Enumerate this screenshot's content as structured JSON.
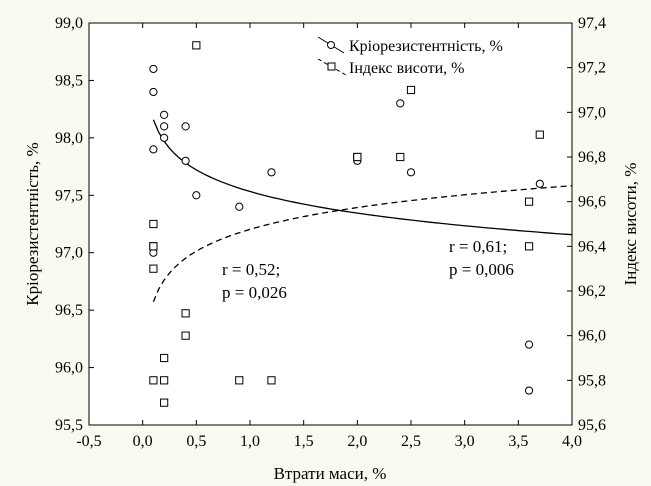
{
  "chart_data": {
    "type": "scatter",
    "xlabel": "Втрати маси, %",
    "ylabel_left": "Кріорезистентність, %",
    "ylabel_right": "Індекс висоти, %",
    "xlim": [
      -0.5,
      4.0
    ],
    "ylim_left": [
      95.5,
      99.0
    ],
    "ylim_right": [
      95.6,
      97.4
    ],
    "x_ticks": [
      -0.5,
      0.0,
      0.5,
      1.0,
      1.5,
      2.0,
      2.5,
      3.0,
      3.5,
      4.0
    ],
    "x_tick_labels": [
      "-0,5",
      "0,0",
      "0,5",
      "1,0",
      "1,5",
      "2,0",
      "2,5",
      "3,0",
      "3,5",
      "4,0"
    ],
    "y_left_ticks": [
      95.5,
      96.0,
      96.5,
      97.0,
      97.5,
      98.0,
      98.5,
      99.0
    ],
    "y_left_tick_labels": [
      "95,5",
      "96,0",
      "96,5",
      "97,0",
      "97,5",
      "98,0",
      "98,5",
      "99,0"
    ],
    "y_right_ticks": [
      95.6,
      95.8,
      96.0,
      96.2,
      96.4,
      96.6,
      96.8,
      97.0,
      97.2,
      97.4
    ],
    "y_right_tick_labels": [
      "95,6",
      "95,8",
      "96,0",
      "96,2",
      "96,4",
      "96,6",
      "96,8",
      "97,0",
      "97,2",
      "97,4"
    ],
    "grid": false,
    "legend_position": "top-right",
    "series": [
      {
        "name": "Кріорезистентність, %",
        "axis": "left",
        "marker": "circle",
        "points": [
          [
            0.1,
            98.6
          ],
          [
            0.1,
            98.4
          ],
          [
            0.1,
            97.9
          ],
          [
            0.1,
            97.0
          ],
          [
            0.2,
            98.2
          ],
          [
            0.2,
            98.1
          ],
          [
            0.2,
            98.0
          ],
          [
            0.4,
            98.1
          ],
          [
            0.4,
            97.8
          ],
          [
            0.5,
            97.5
          ],
          [
            0.9,
            97.4
          ],
          [
            1.2,
            97.7
          ],
          [
            2.0,
            97.8
          ],
          [
            2.4,
            98.3
          ],
          [
            2.5,
            97.7
          ],
          [
            3.6,
            96.2
          ],
          [
            3.6,
            95.8
          ],
          [
            3.7,
            97.6
          ]
        ],
        "fit": {
          "kind": "log",
          "line": "solid",
          "x_range": [
            0.1,
            4.0
          ],
          "a": 97.533,
          "b": -0.2715
        }
      },
      {
        "name": "Індекс висоти, %",
        "axis": "right",
        "marker": "square",
        "points": [
          [
            0.1,
            96.5
          ],
          [
            0.1,
            96.4
          ],
          [
            0.1,
            96.4
          ],
          [
            0.1,
            96.3
          ],
          [
            0.1,
            95.8
          ],
          [
            0.2,
            95.9
          ],
          [
            0.2,
            95.8
          ],
          [
            0.2,
            95.7
          ],
          [
            0.4,
            96.1
          ],
          [
            0.4,
            96.0
          ],
          [
            0.5,
            97.3
          ],
          [
            0.9,
            95.8
          ],
          [
            1.2,
            95.8
          ],
          [
            2.0,
            96.8
          ],
          [
            2.0,
            96.8
          ],
          [
            2.4,
            96.8
          ],
          [
            2.5,
            97.1
          ],
          [
            3.6,
            96.6
          ],
          [
            3.6,
            96.4
          ],
          [
            3.7,
            96.9
          ]
        ],
        "fit": {
          "kind": "log",
          "line": "dashed",
          "x_range": [
            0.1,
            4.0
          ],
          "a": 96.476,
          "b": 0.1409
        }
      }
    ],
    "annotations": [
      {
        "lines": [
          "r = 0,52;",
          "p = 0,026"
        ]
      },
      {
        "lines": [
          "r = 0,61;",
          "p = 0,006"
        ]
      }
    ]
  }
}
